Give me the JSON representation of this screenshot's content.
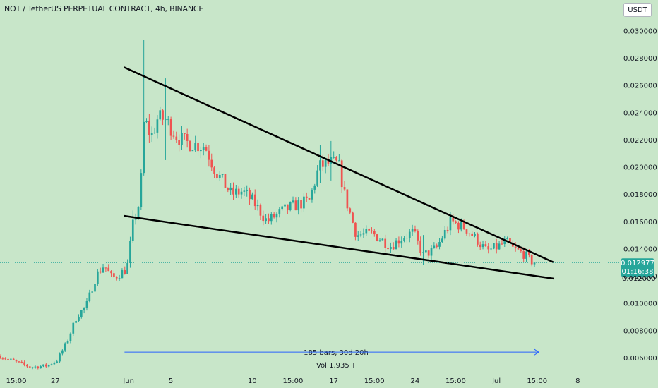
{
  "header": {
    "title": "NOT / TetherUS PERPETUAL CONTRACT, 4h, BINANCE",
    "currency_button": "USDT"
  },
  "price_tag": {
    "price": "0.012977",
    "countdown": "01:16:38",
    "partial_label": "0.012000"
  },
  "measure": {
    "line1": "185 bars, 30d 20h",
    "line2": "Vol 1.935 T"
  },
  "colors": {
    "background": "#c8e6c9",
    "bull": "#26a69a",
    "bear": "#ef5350",
    "trendline": "#000000",
    "measure": "#2962ff",
    "price_tag": "#26a69a"
  },
  "chart_data": {
    "type": "candlestick",
    "title": "NOT / TetherUS PERPETUAL CONTRACT, 4h, BINANCE",
    "ylim": [
      0.0047,
      0.0307
    ],
    "y_ticks": [
      "0.030000",
      "0.028000",
      "0.026000",
      "0.024000",
      "0.022000",
      "0.020000",
      "0.018000",
      "0.016000",
      "0.014000",
      "0.012000",
      "0.010000",
      "0.008000",
      "0.006000"
    ],
    "x_ticks": [
      {
        "label": "15:00",
        "t": -7.4
      },
      {
        "label": "27",
        "t": -5.0
      },
      {
        "label": "Jun",
        "t": -0.5
      },
      {
        "label": "5",
        "t": 2.1
      },
      {
        "label": "10",
        "t": 7.1
      },
      {
        "label": "15:00",
        "t": 9.6
      },
      {
        "label": "17",
        "t": 12.1
      },
      {
        "label": "15:00",
        "t": 14.6
      },
      {
        "label": "24",
        "t": 17.1
      },
      {
        "label": "15:00",
        "t": 19.6
      },
      {
        "label": "Jul",
        "t": 22.1
      },
      {
        "label": "15:00",
        "t": 24.6
      },
      {
        "label": "8",
        "t": 27.1
      }
    ],
    "xlim": [
      -8.4,
      29.6
    ],
    "candles": {
      "t_start": -8.4,
      "step": 0.1667,
      "anchors": [
        [
          -8.4,
          0.0061
        ],
        [
          -7.5,
          0.0057
        ],
        [
          -6.5,
          0.0053
        ],
        [
          -5.5,
          0.0054
        ],
        [
          -4.9,
          0.0058
        ],
        [
          -4.3,
          0.0071
        ],
        [
          -3.7,
          0.009
        ],
        [
          -3.1,
          0.0098
        ],
        [
          -2.5,
          0.012
        ],
        [
          -2.0,
          0.0128
        ],
        [
          -1.5,
          0.0118
        ],
        [
          -0.6,
          0.0125
        ],
        [
          -0.2,
          0.016
        ],
        [
          0.2,
          0.0175
        ],
        [
          0.45,
          0.0235
        ],
        [
          0.9,
          0.0222
        ],
        [
          1.3,
          0.0236
        ],
        [
          1.75,
          0.0235
        ],
        [
          2.5,
          0.0222
        ],
        [
          3.0,
          0.0218
        ],
        [
          4.2,
          0.0215
        ],
        [
          4.8,
          0.0198
        ],
        [
          5.8,
          0.018
        ],
        [
          6.5,
          0.0182
        ],
        [
          7.2,
          0.0174
        ],
        [
          8.0,
          0.016
        ],
        [
          9.0,
          0.0168
        ],
        [
          9.8,
          0.0172
        ],
        [
          10.6,
          0.0175
        ],
        [
          11.2,
          0.02
        ],
        [
          11.9,
          0.0203
        ],
        [
          12.4,
          0.0202
        ],
        [
          12.8,
          0.0178
        ],
        [
          13.5,
          0.015
        ],
        [
          14.5,
          0.0151
        ],
        [
          15.6,
          0.0142
        ],
        [
          16.4,
          0.0149
        ],
        [
          17.0,
          0.0152
        ],
        [
          17.6,
          0.0135
        ],
        [
          18.4,
          0.014
        ],
        [
          19.3,
          0.016
        ],
        [
          20.2,
          0.0155
        ],
        [
          20.8,
          0.0148
        ],
        [
          21.5,
          0.0138
        ],
        [
          22.3,
          0.0142
        ],
        [
          22.7,
          0.0145
        ],
        [
          23.1,
          0.014
        ],
        [
          23.8,
          0.0136
        ],
        [
          24.2,
          0.0131
        ],
        [
          24.5,
          0.013
        ]
      ],
      "wicks": [
        {
          "t": 0.45,
          "high": 0.0293,
          "low": 0.0212
        },
        {
          "t": 1.75,
          "high": 0.0265,
          "low": 0.0205
        },
        {
          "t": 11.2,
          "high": 0.0216,
          "low": 0.0188
        },
        {
          "t": 11.9,
          "high": 0.0219,
          "low": 0.019
        },
        {
          "t": 17.6,
          "high": 0.015,
          "low": 0.0128
        },
        {
          "t": 19.3,
          "high": 0.0167,
          "low": 0.015
        },
        {
          "t": -0.2,
          "high": 0.0168,
          "low": 0.0155
        }
      ]
    },
    "trendlines": [
      {
        "name": "upper",
        "from": [
          -0.75,
          0.0273
        ],
        "to": [
          25.6,
          0.013
        ]
      },
      {
        "name": "lower",
        "from": [
          -0.75,
          0.0164
        ],
        "to": [
          25.6,
          0.0118
        ]
      }
    ],
    "measure_arrow": {
      "from_t": -0.75,
      "to_t": 24.7,
      "y": 0.0064
    },
    "last_price": 0.012977
  }
}
